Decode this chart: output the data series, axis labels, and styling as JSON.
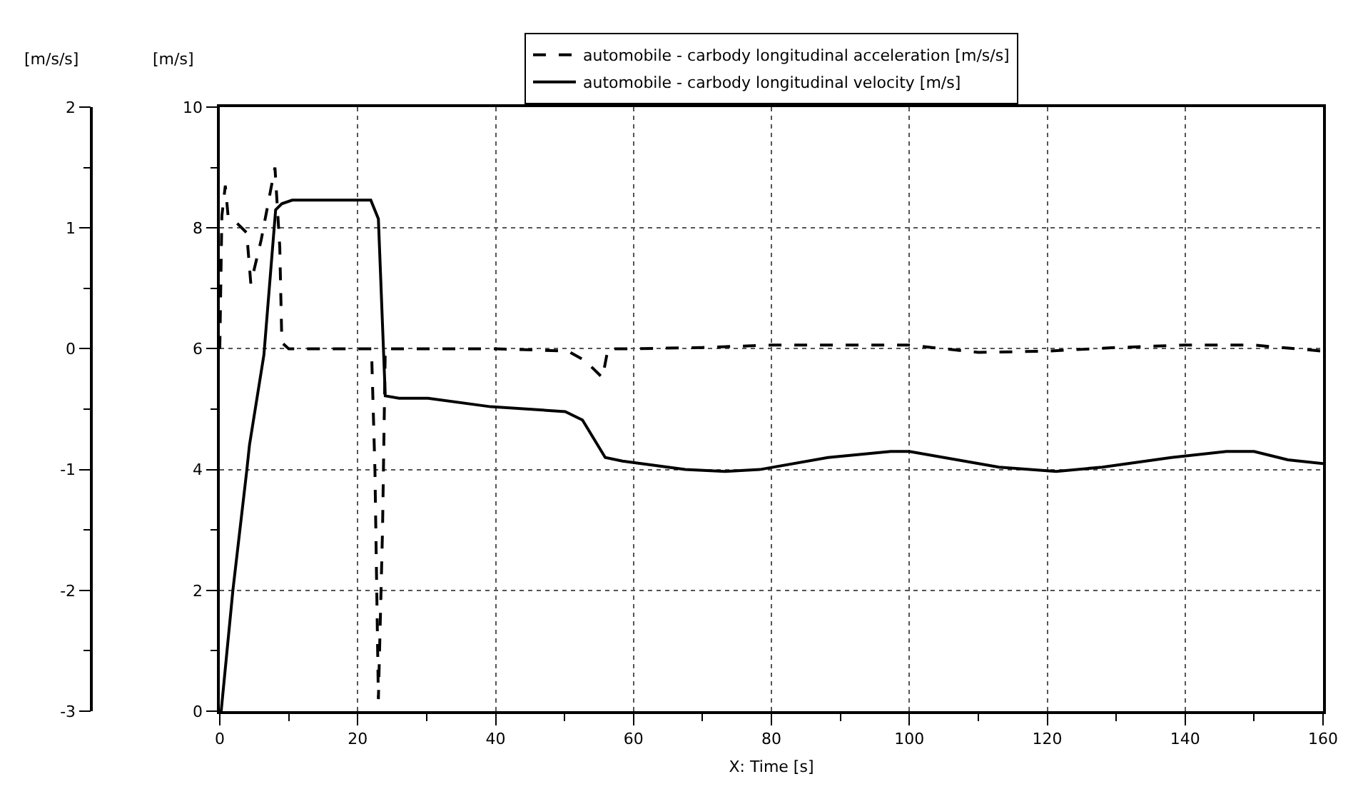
{
  "chart_data": {
    "type": "line",
    "xlabel": "X: Time [s]",
    "ylabel": "[m/s]",
    "y2label": "[m/s/s]",
    "xlim": [
      0,
      160
    ],
    "xticks": [
      0,
      {
        "value": 10,
        "label": null
      },
      20,
      {
        "value": 30,
        "label": null
      },
      40,
      {
        "value": 50,
        "label": null
      },
      60,
      {
        "value": 70,
        "label": null
      },
      80,
      {
        "value": 90,
        "label": null
      },
      100,
      {
        "value": 110,
        "label": null
      },
      120,
      {
        "value": 130,
        "label": null
      },
      140,
      {
        "value": 150,
        "label": null
      },
      160
    ],
    "ylim": [
      0,
      10
    ],
    "yticks": [
      0,
      {
        "value": 1,
        "label": null
      },
      2,
      {
        "value": 3,
        "label": null
      },
      4,
      {
        "value": 5,
        "label": null
      },
      6,
      {
        "value": 7,
        "label": null
      },
      8,
      {
        "value": 9,
        "label": null
      },
      10
    ],
    "y2lim": [
      -3,
      2
    ],
    "y2ticks": [
      -3,
      {
        "value": -2.5,
        "label": null
      },
      -2,
      {
        "value": -1.5,
        "label": null
      },
      -1,
      {
        "value": -0.5,
        "label": null
      },
      0,
      {
        "value": 0.5,
        "label": null
      },
      1,
      {
        "value": 1.5,
        "label": null
      },
      2
    ],
    "grid": true,
    "legend": "top",
    "marker": "none",
    "series": [
      {
        "name": "automobile - carbody longitudinal acceleration [m/s/s]",
        "color": "#000000",
        "line_style": "dashed",
        "axis": "y2",
        "x": [
          0,
          0.3,
          0.8,
          1.2,
          1.6,
          3.9,
          4.5,
          6,
          8,
          8.7,
          9,
          10,
          22,
          22.5,
          23,
          23.6,
          24,
          30,
          40,
          50.5,
          53,
          55.5,
          56.3,
          60,
          70,
          80,
          90,
          100,
          110,
          120,
          130,
          140,
          150,
          160
        ],
        "values": [
          0,
          1.1,
          1.35,
          1.1,
          1.09,
          0.96,
          0.54,
          0.9,
          1.5,
          0.84,
          0.05,
          0,
          0,
          -1.0,
          -2.9,
          -1.5,
          0,
          0,
          0,
          -0.02,
          -0.1,
          -0.24,
          0,
          0,
          0.01,
          0.03,
          0.03,
          0.03,
          -0.03,
          -0.02,
          0.01,
          0.03,
          0.03,
          -0.02
        ]
      },
      {
        "name": "automobile - carbody longitudinal velocity [m/s]",
        "color": "#000000",
        "line_style": "solid",
        "x": [
          0,
          0.2,
          1.9,
          3.9,
          4.3,
          6.4,
          8.1,
          9,
          10.5,
          21.9,
          23,
          24,
          26,
          30.2,
          39.3,
          50.1,
          52.6,
          55.9,
          58.4,
          67.5,
          73.3,
          78.3,
          88.2,
          97.3,
          100,
          113,
          121.3,
          128,
          138,
          146,
          150,
          154.9,
          160
        ],
        "values": [
          0,
          0,
          2.0,
          3.97,
          4.4,
          5.9,
          8.3,
          8.4,
          8.46,
          8.46,
          8.15,
          5.22,
          5.18,
          5.18,
          5.04,
          4.96,
          4.82,
          4.2,
          4.14,
          4.0,
          3.97,
          4.0,
          4.2,
          4.3,
          4.3,
          4.04,
          3.97,
          4.04,
          4.2,
          4.3,
          4.3,
          4.16,
          4.1
        ]
      }
    ]
  }
}
